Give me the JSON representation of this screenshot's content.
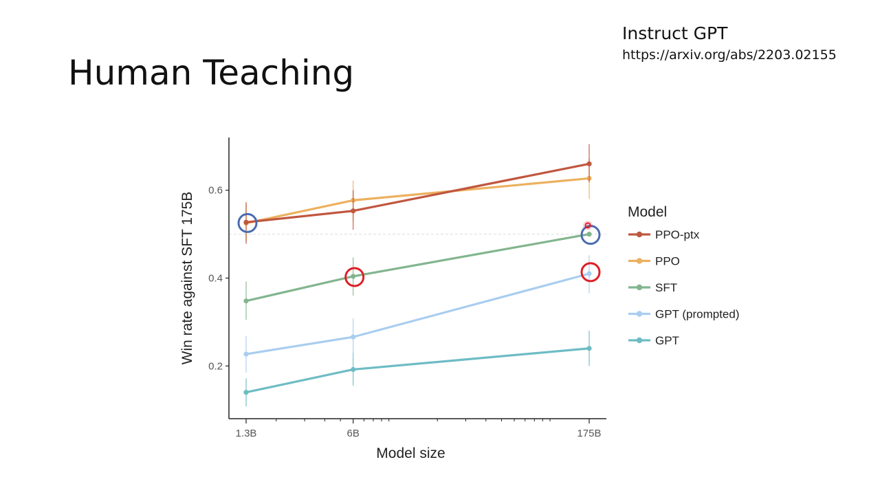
{
  "slide": {
    "title": "Human Teaching",
    "reference_title": "Instruct GPT",
    "reference_url": "https://arxiv.org/abs/2203.02155"
  },
  "chart_data": {
    "type": "line",
    "title": "",
    "xlabel": "Model size",
    "ylabel": "Win rate against SFT 175B",
    "x_scale": "log",
    "x": [
      "1.3B",
      "6B",
      "175B"
    ],
    "x_values_billions": [
      1.3,
      6,
      175
    ],
    "xlim_billions": [
      1.3,
      175
    ],
    "ylim": [
      0.08,
      0.72
    ],
    "yticks": [
      0.2,
      0.4,
      0.6
    ],
    "ytick_labels": [
      "0.2",
      "0.4",
      "0.6"
    ],
    "reference_line_y": 0.5,
    "grid": false,
    "legend_title": "Model",
    "legend_position": "right",
    "series": [
      {
        "name": "PPO-ptx",
        "color": "#c0573f",
        "values": [
          0.527,
          0.553,
          0.66
        ],
        "err_low": [
          0.478,
          0.51,
          0.618
        ],
        "err_high": [
          0.573,
          0.6,
          0.705
        ]
      },
      {
        "name": "PPO",
        "color": "#ecb05e",
        "values": [
          0.525,
          0.577,
          0.627
        ],
        "err_low": [
          0.483,
          0.53,
          0.58
        ],
        "err_high": [
          0.568,
          0.622,
          0.672
        ]
      },
      {
        "name": "SFT",
        "color": "#82b58e",
        "values": [
          0.348,
          0.404,
          0.5
        ],
        "err_low": [
          0.305,
          0.36,
          0.495
        ],
        "err_high": [
          0.392,
          0.447,
          0.505
        ]
      },
      {
        "name": "GPT (prompted)",
        "color": "#a9cdf0",
        "values": [
          0.227,
          0.266,
          0.41
        ],
        "err_low": [
          0.185,
          0.218,
          0.365
        ],
        "err_high": [
          0.268,
          0.308,
          0.452
        ]
      },
      {
        "name": "GPT",
        "color": "#6dbcc4",
        "values": [
          0.14,
          0.192,
          0.24
        ],
        "err_low": [
          0.108,
          0.155,
          0.2
        ],
        "err_high": [
          0.172,
          0.23,
          0.28
        ]
      }
    ],
    "annotations": [
      {
        "shape": "circle",
        "color": "#4a6bb0",
        "series": "PPO",
        "x": 1.3,
        "y": 0.527
      },
      {
        "shape": "circle",
        "color": "#4a6bb0",
        "series": "SFT",
        "x": 175,
        "y": 0.5
      },
      {
        "shape": "circle",
        "color": "#dd1f26",
        "series": "SFT",
        "x": 6,
        "y": 0.404
      },
      {
        "shape": "circle",
        "color": "#dd1f26",
        "series": "GPT (prompted)",
        "x": 175,
        "y": 0.415
      },
      {
        "shape": "dot",
        "color": "#dd1f26",
        "series": "SFT",
        "x": 175,
        "y": 0.52
      }
    ]
  }
}
